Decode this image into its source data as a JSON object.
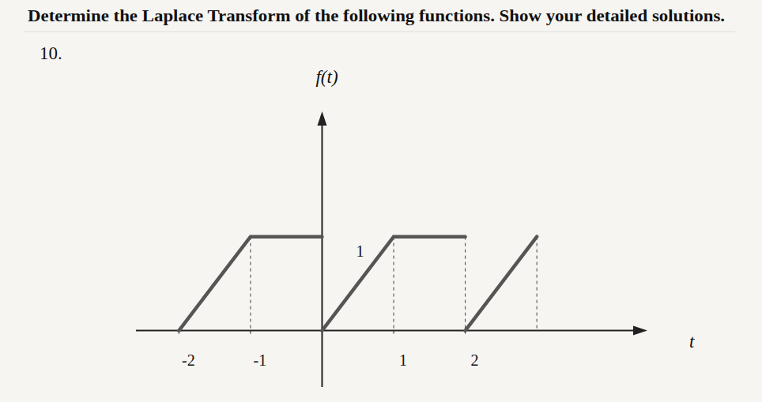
{
  "chart_data": {
    "type": "line",
    "title": "Determine the Laplace Transform of the following functions. Show your detailed solutions.",
    "annotations": [
      "10."
    ],
    "y_label": "f(t)",
    "x_label": "t",
    "x": [
      -2,
      -1,
      0,
      0,
      0,
      1,
      2,
      2,
      2,
      3
    ],
    "values": [
      0,
      1,
      1,
      null,
      0,
      1,
      1,
      null,
      0,
      1
    ],
    "color": "#555555",
    "xlim": [
      -2.6,
      4.5
    ],
    "ylim": [
      -0.6,
      2.3
    ],
    "xticks": [
      -2,
      -1,
      1,
      2
    ],
    "yticks": [
      1
    ],
    "grid": false
  }
}
